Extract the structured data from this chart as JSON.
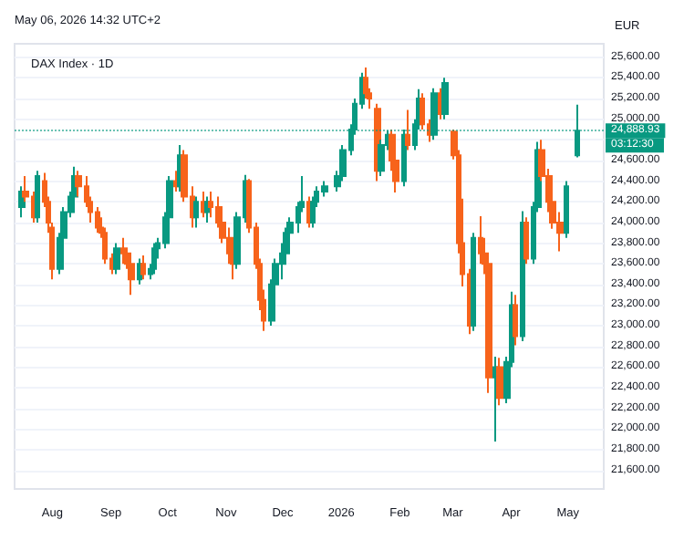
{
  "chart_data": {
    "type": "candlestick",
    "title": "DAX Index · 1D",
    "ylabel": "EUR",
    "annotations": [
      "May 06, 2026 14:32 UTC+2",
      "03:12:30"
    ],
    "x": [
      "2025-07-16",
      "2025-07-18",
      "2025-07-22",
      "2025-07-24",
      "2025-07-28",
      "2025-07-30",
      "2025-08-01",
      "2025-08-05",
      "2025-08-07",
      "2025-08-11",
      "2025-08-13",
      "2025-08-15",
      "2025-08-19",
      "2025-08-21",
      "2025-08-25",
      "2025-08-27",
      "2025-08-29",
      "2025-09-02",
      "2025-09-04",
      "2025-09-08",
      "2025-09-10",
      "2025-09-12",
      "2025-09-16",
      "2025-09-18",
      "2025-09-22",
      "2025-09-24",
      "2025-09-26",
      "2025-09-30",
      "2025-10-02",
      "2025-10-06",
      "2025-10-08",
      "2025-10-10",
      "2025-10-14",
      "2025-10-16",
      "2025-10-20",
      "2025-10-22",
      "2025-10-24",
      "2025-10-28",
      "2025-10-30",
      "2025-11-03",
      "2025-11-05",
      "2025-11-07",
      "2025-11-11",
      "2025-11-13",
      "2025-11-17",
      "2025-11-19",
      "2025-11-21",
      "2025-11-25",
      "2025-11-27",
      "2025-12-01",
      "2025-12-03",
      "2025-12-05",
      "2025-12-09",
      "2025-12-11",
      "2025-12-15",
      "2025-12-17",
      "2025-12-19",
      "2025-12-23",
      "2025-12-30",
      "2026-01-02",
      "2026-01-06",
      "2026-01-08",
      "2026-01-12",
      "2026-01-14",
      "2026-01-16",
      "2026-01-20",
      "2026-01-22",
      "2026-01-26",
      "2026-01-28",
      "2026-01-30",
      "2026-02-03",
      "2026-02-05",
      "2026-02-09",
      "2026-02-11",
      "2026-02-13",
      "2026-02-17",
      "2026-02-19",
      "2026-02-23",
      "2026-02-25",
      "2026-03-02",
      "2026-03-04",
      "2026-03-06",
      "2026-03-10",
      "2026-03-12",
      "2026-03-16",
      "2026-03-18",
      "2026-03-20",
      "2026-03-24",
      "2026-03-26",
      "2026-03-30",
      "2026-04-01",
      "2026-04-03",
      "2026-04-07",
      "2026-04-09",
      "2026-04-13",
      "2026-04-15",
      "2026-04-17",
      "2026-04-21",
      "2026-04-23",
      "2026-04-27",
      "2026-04-30",
      "2026-05-06"
    ],
    "ohlc": [
      [
        24150,
        24350,
        24050,
        24300
      ],
      [
        24300,
        24450,
        24200,
        24250
      ],
      [
        24250,
        24300,
        24000,
        24050
      ],
      [
        24050,
        24500,
        24000,
        24450
      ],
      [
        24400,
        24480,
        24150,
        24200
      ],
      [
        24200,
        24250,
        23900,
        24000
      ],
      [
        23950,
        24000,
        23450,
        23550
      ],
      [
        23550,
        23900,
        23500,
        23850
      ],
      [
        23850,
        24150,
        23800,
        24100
      ],
      [
        24100,
        24300,
        24050,
        24250
      ],
      [
        24250,
        24540,
        24200,
        24450
      ],
      [
        24450,
        24500,
        24250,
        24350
      ],
      [
        24350,
        24450,
        24150,
        24200
      ],
      [
        24200,
        24250,
        24000,
        24100
      ],
      [
        24100,
        24150,
        23900,
        23950
      ],
      [
        23950,
        24050,
        23850,
        23900
      ],
      [
        23900,
        23950,
        23600,
        23650
      ],
      [
        23650,
        23700,
        23500,
        23550
      ],
      [
        23550,
        23800,
        23500,
        23750
      ],
      [
        23750,
        23850,
        23600,
        23700
      ],
      [
        23700,
        23750,
        23550,
        23600
      ],
      [
        23600,
        23700,
        23300,
        23450
      ],
      [
        23450,
        23650,
        23400,
        23600
      ],
      [
        23600,
        23680,
        23450,
        23500
      ],
      [
        23500,
        23600,
        23450,
        23550
      ],
      [
        23550,
        23800,
        23500,
        23750
      ],
      [
        23750,
        23850,
        23650,
        23800
      ],
      [
        23800,
        24100,
        23750,
        24050
      ],
      [
        24050,
        24450,
        24000,
        24400
      ],
      [
        24400,
        24500,
        24300,
        24350
      ],
      [
        24350,
        24750,
        24300,
        24650
      ],
      [
        24650,
        24700,
        24200,
        24250
      ],
      [
        24250,
        24350,
        23950,
        24050
      ],
      [
        24050,
        24250,
        23950,
        24200
      ],
      [
        24200,
        24300,
        24050,
        24100
      ],
      [
        24100,
        24250,
        24000,
        24200
      ],
      [
        24200,
        24300,
        24050,
        24150
      ],
      [
        24150,
        24250,
        23950,
        24000
      ],
      [
        24000,
        24100,
        23800,
        23850
      ],
      [
        23850,
        23950,
        23600,
        23700
      ],
      [
        23700,
        23800,
        23450,
        23600
      ],
      [
        23600,
        24100,
        23550,
        24050
      ],
      [
        24050,
        24460,
        24000,
        24400
      ],
      [
        24400,
        24420,
        23900,
        23950
      ],
      [
        23950,
        24000,
        23550,
        23600
      ],
      [
        23600,
        23650,
        23150,
        23250
      ],
      [
        23250,
        23350,
        22950,
        23050
      ],
      [
        23050,
        23450,
        23000,
        23400
      ],
      [
        23400,
        23650,
        23350,
        23600
      ],
      [
        23600,
        23800,
        23450,
        23700
      ],
      [
        23700,
        23950,
        23650,
        23900
      ],
      [
        23900,
        24050,
        23800,
        24000
      ],
      [
        24000,
        24200,
        23900,
        24150
      ],
      [
        24150,
        24450,
        24100,
        24200
      ],
      [
        24200,
        24250,
        23950,
        24000
      ],
      [
        24000,
        24250,
        23950,
        24200
      ],
      [
        24200,
        24350,
        24150,
        24300
      ],
      [
        24300,
        24400,
        24250,
        24350
      ],
      [
        24350,
        24500,
        24300,
        24450
      ],
      [
        24450,
        24750,
        24400,
        24700
      ],
      [
        24700,
        24950,
        24650,
        24900
      ],
      [
        24900,
        25200,
        24850,
        25150
      ],
      [
        25150,
        25450,
        25100,
        25400
      ],
      [
        25400,
        25500,
        25200,
        25250
      ],
      [
        25250,
        25300,
        25100,
        25200
      ],
      [
        25100,
        25150,
        24400,
        24500
      ],
      [
        24500,
        24800,
        24450,
        24750
      ],
      [
        24750,
        24890,
        24700,
        24850
      ],
      [
        24850,
        24900,
        24500,
        24600
      ],
      [
        24600,
        24700,
        24290,
        24400
      ],
      [
        24400,
        24900,
        24350,
        24850
      ],
      [
        24850,
        25090,
        24700,
        24750
      ],
      [
        24750,
        25000,
        24700,
        24950
      ],
      [
        24950,
        25290,
        24900,
        25200
      ],
      [
        25200,
        25250,
        24900,
        24950
      ],
      [
        24950,
        25000,
        24780,
        24850
      ],
      [
        24850,
        25300,
        24800,
        25250
      ],
      [
        25250,
        25300,
        25000,
        25050
      ],
      [
        25050,
        25400,
        25000,
        25350
      ],
      [
        24880,
        24900,
        24610,
        24650
      ],
      [
        24650,
        24700,
        23700,
        23800
      ],
      [
        23800,
        24230,
        23380,
        23500
      ],
      [
        23500,
        23550,
        22920,
        23000
      ],
      [
        23000,
        23900,
        22950,
        23850
      ],
      [
        23850,
        24060,
        23600,
        23700
      ],
      [
        23700,
        23850,
        23500,
        23600
      ],
      [
        23600,
        23650,
        22350,
        22500
      ],
      [
        22500,
        22700,
        21880,
        22600
      ],
      [
        22600,
        22690,
        22230,
        22300
      ],
      [
        22300,
        22700,
        22250,
        22650
      ],
      [
        22650,
        23330,
        22600,
        23200
      ],
      [
        23200,
        23300,
        22810,
        22900
      ],
      [
        22900,
        24110,
        22850,
        24000
      ],
      [
        24000,
        24050,
        23600,
        23650
      ],
      [
        23650,
        24200,
        23600,
        24150
      ],
      [
        24150,
        24780,
        24100,
        24700
      ],
      [
        24700,
        24800,
        24400,
        24450
      ],
      [
        24450,
        24520,
        24100,
        24200
      ],
      [
        24200,
        24300,
        23940,
        24000
      ],
      [
        24000,
        24100,
        23720,
        23900
      ],
      [
        23900,
        24400,
        23850,
        24350
      ],
      [
        24650,
        25140,
        24630,
        24888.93
      ]
    ],
    "xlim": [
      "2025-07-12",
      "2026-05-20"
    ],
    "xticks": [
      {
        "value": "2025-08-01",
        "label": "Aug"
      },
      {
        "value": "2025-09-01",
        "label": "Sep"
      },
      {
        "value": "2025-10-01",
        "label": "Oct"
      },
      {
        "value": "2025-11-01",
        "label": "Nov"
      },
      {
        "value": "2025-12-01",
        "label": "Dec"
      },
      {
        "value": "2026-01-01",
        "label": "2026"
      },
      {
        "value": "2026-02-01",
        "label": "Feb"
      },
      {
        "value": "2026-03-01",
        "label": "Mar"
      },
      {
        "value": "2026-04-01",
        "label": "Apr"
      },
      {
        "value": "2026-05-01",
        "label": "May"
      }
    ],
    "ylim": [
      21420,
      25730
    ],
    "yticks": [
      {
        "value": 21600,
        "label": "21,600.00"
      },
      {
        "value": 21800,
        "label": "21,800.00"
      },
      {
        "value": 22000,
        "label": "22,000.00"
      },
      {
        "value": 22200,
        "label": "22,200.00"
      },
      {
        "value": 22400,
        "label": "22,400.00"
      },
      {
        "value": 22600,
        "label": "22,600.00"
      },
      {
        "value": 22800,
        "label": "22,800.00"
      },
      {
        "value": 23000,
        "label": "23,000.00"
      },
      {
        "value": 23200,
        "label": "23,200.00"
      },
      {
        "value": 23400,
        "label": "23,400.00"
      },
      {
        "value": 23600,
        "label": "23,600.00"
      },
      {
        "value": 23800,
        "label": "23,800.00"
      },
      {
        "value": 24000,
        "label": "24,000.00"
      },
      {
        "value": 24200,
        "label": "24,200.00"
      },
      {
        "value": 24400,
        "label": "24,400.00"
      },
      {
        "value": 24600,
        "label": "24,600.00"
      },
      {
        "value": 24800,
        "label": null
      },
      {
        "value": 25000,
        "label": "25,000.00"
      },
      {
        "value": 25200,
        "label": "25,200.00"
      },
      {
        "value": 25400,
        "label": "25,400.00"
      },
      {
        "value": 25600,
        "label": "25,600.00"
      }
    ],
    "ref_lines": [
      {
        "axis": "y",
        "value": 24888.93,
        "label": "24,888.93",
        "color": "#089981",
        "line_style": "dotted"
      }
    ],
    "grid": "y"
  }
}
